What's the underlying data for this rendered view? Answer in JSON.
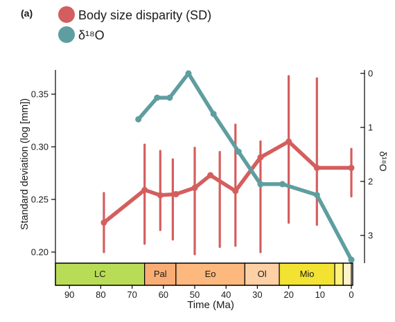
{
  "chart_data": {
    "type": "line",
    "panel_label": "(a)",
    "xlabel": "Time (Ma)",
    "x_ticks": [
      90,
      80,
      70,
      60,
      50,
      40,
      30,
      20,
      10,
      0
    ],
    "x_reversed": true,
    "ylabel": "Standard deviation (log [mm])",
    "y_ticks": [
      {
        "value": 0.2,
        "label": "0.20"
      },
      {
        "value": 0.25,
        "label": "0.25"
      },
      {
        "value": 0.3,
        "label": "0.30"
      },
      {
        "value": 0.35,
        "label": "0.35"
      }
    ],
    "ylabel_right": "δ¹⁸O",
    "y_right_ticks": [
      {
        "value": 0,
        "label": "0"
      },
      {
        "value": 1,
        "label": "1"
      },
      {
        "value": 2,
        "label": "2"
      },
      {
        "value": 3,
        "label": "3"
      }
    ],
    "y_right_reversed": true,
    "legend": {
      "position": "top-left"
    },
    "series": [
      {
        "name": "Body size disparity (SD)",
        "color": "#d45e5e",
        "axis": "left",
        "x": [
          79,
          66,
          61,
          56,
          50,
          45,
          37,
          29,
          20,
          11,
          0
        ],
        "y": [
          0.228,
          0.259,
          0.254,
          0.255,
          0.261,
          0.273,
          0.258,
          0.29,
          0.305,
          0.28,
          0.28
        ],
        "error_x": [
          79,
          66,
          61,
          57,
          50,
          42,
          37,
          29,
          20,
          11,
          0
        ],
        "error_low": [
          0.2,
          0.208,
          0.221,
          0.212,
          0.198,
          0.205,
          0.206,
          0.2,
          0.228,
          0.226,
          0.253
        ],
        "error_high": [
          0.256,
          0.302,
          0.296,
          0.288,
          0.299,
          0.295,
          0.321,
          0.305,
          0.367,
          0.365,
          0.298
        ]
      },
      {
        "name": "δ¹⁸O",
        "color": "#5e9ea0",
        "axis": "right",
        "x": [
          68,
          62,
          58,
          52,
          44,
          36,
          29,
          22,
          11,
          0
        ],
        "y": [
          0.85,
          0.45,
          0.45,
          0.0,
          0.75,
          1.45,
          2.05,
          2.05,
          2.25,
          3.45
        ]
      }
    ],
    "epochs": [
      {
        "label": "LC",
        "start": 100,
        "end": 66,
        "color": "#b8dc56"
      },
      {
        "label": "Pal",
        "start": 66,
        "end": 56,
        "color": "#f9ad74"
      },
      {
        "label": "Eo",
        "start": 56,
        "end": 34,
        "color": "#fcb87d"
      },
      {
        "label": "Ol",
        "start": 34,
        "end": 23,
        "color": "#fdd0a5"
      },
      {
        "label": "Mio",
        "start": 23,
        "end": 5.3,
        "color": "#f2e332"
      },
      {
        "label": "",
        "start": 5.3,
        "end": 2.6,
        "color": "#fff27c"
      },
      {
        "label": "",
        "start": 2.6,
        "end": 0,
        "color": "#fff3cc"
      }
    ]
  }
}
